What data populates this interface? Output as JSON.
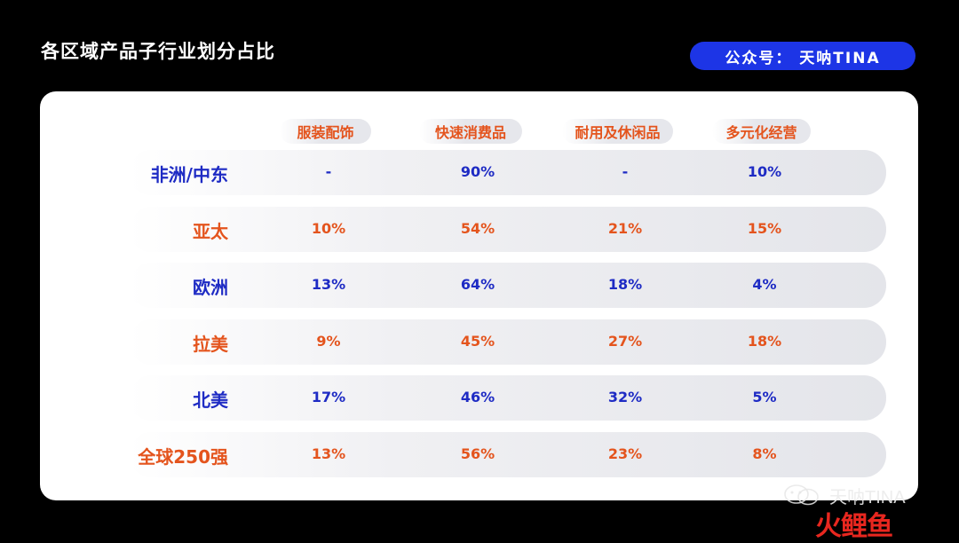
{
  "title": "各区域产品子行业划分占比",
  "badge": "公众号： 天呐TINA",
  "columns": [
    "服装配饰",
    "快速消费品",
    "耐用及休闲品",
    "多元化经营"
  ],
  "rows": [
    {
      "label": "非洲/中东",
      "values": [
        "-",
        "90%",
        "-",
        "10%"
      ],
      "color": "blue"
    },
    {
      "label": "亚太",
      "values": [
        "10%",
        "54%",
        "21%",
        "15%"
      ],
      "color": "orange"
    },
    {
      "label": "欧洲",
      "values": [
        "13%",
        "64%",
        "18%",
        "4%"
      ],
      "color": "blue"
    },
    {
      "label": "拉美",
      "values": [
        "9%",
        "45%",
        "27%",
        "18%"
      ],
      "color": "orange"
    },
    {
      "label": "北美",
      "values": [
        "17%",
        "46%",
        "32%",
        "5%"
      ],
      "color": "blue"
    },
    {
      "label": "全球250强",
      "values": [
        "13%",
        "56%",
        "23%",
        "8%"
      ],
      "color": "orange"
    }
  ],
  "watermark": {
    "account": "天呐TINA",
    "logo_chars": [
      "火",
      "鲤",
      "鱼"
    ]
  },
  "colors": {
    "blue": "#1e2bc4",
    "orange": "#e4541d",
    "badge_bg": "#1d35e6",
    "background": "#000000"
  }
}
